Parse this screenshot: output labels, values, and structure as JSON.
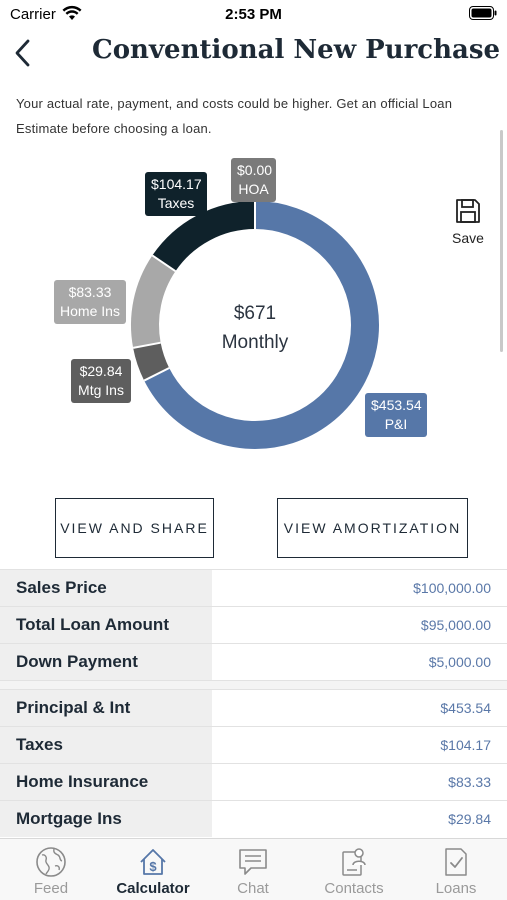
{
  "status": {
    "carrier": "Carrier",
    "time": "2:53 PM"
  },
  "header": {
    "title": "Conventional New Purchase"
  },
  "disclaimer": "Your actual rate, payment, and costs could be higher. Get an official Loan Estimate before choosing a loan.",
  "chart_data": {
    "type": "donut",
    "center_value": "$671",
    "center_label": "Monthly",
    "slices": [
      {
        "label": "P&I",
        "value": 453.54,
        "display": "$453.54",
        "color": "#5677a8"
      },
      {
        "label": "Mtg Ins",
        "value": 29.84,
        "display": "$29.84",
        "color": "#5e5e5e"
      },
      {
        "label": "Home Ins",
        "value": 83.33,
        "display": "$83.33",
        "color": "#a8a8a8"
      },
      {
        "label": "Taxes",
        "value": 104.17,
        "display": "$104.17",
        "color": "#0f222b"
      },
      {
        "label": "HOA",
        "value": 0.0,
        "display": "$0.00",
        "color": "#7a7a7a"
      }
    ]
  },
  "save": {
    "label": "Save",
    "icon": "save-icon"
  },
  "buttons": {
    "share": "VIEW AND SHARE",
    "amortization": "VIEW AMORTIZATION"
  },
  "summary": [
    {
      "label": "Sales Price",
      "value": "$100,000.00"
    },
    {
      "label": "Total Loan Amount",
      "value": "$95,000.00"
    },
    {
      "label": "Down Payment",
      "value": "$5,000.00"
    }
  ],
  "payments": [
    {
      "label": "Principal & Int",
      "value": "$453.54"
    },
    {
      "label": "Taxes",
      "value": "$104.17"
    },
    {
      "label": "Home Insurance",
      "value": "$83.33"
    },
    {
      "label": "Mortgage Ins",
      "value": "$29.84"
    }
  ],
  "tabs": [
    {
      "label": "Feed",
      "icon": "globe-icon"
    },
    {
      "label": "Calculator",
      "icon": "calculator-icon",
      "active": true
    },
    {
      "label": "Chat",
      "icon": "chat-icon"
    },
    {
      "label": "Contacts",
      "icon": "contacts-icon"
    },
    {
      "label": "Loans",
      "icon": "loans-icon"
    }
  ]
}
